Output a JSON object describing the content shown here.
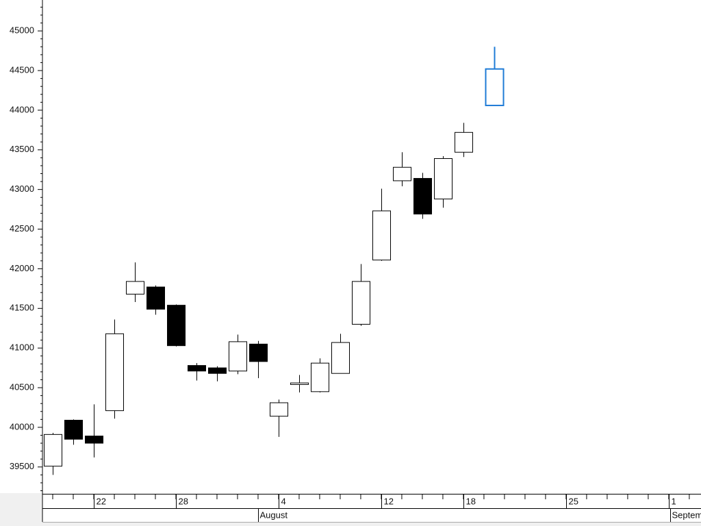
{
  "chart_data": {
    "type": "candlestick",
    "x": [
      0,
      1,
      2,
      3,
      4,
      5,
      6,
      7,
      8,
      9,
      10,
      11,
      12,
      13,
      14,
      15,
      16,
      17,
      18,
      19,
      20,
      21.5
    ],
    "open": [
      39510,
      40090,
      39890,
      40210,
      41680,
      41770,
      41540,
      40780,
      40750,
      40710,
      41050,
      40140,
      40540,
      40450,
      40680,
      41300,
      42110,
      43110,
      43140,
      42880,
      43470,
      44060
    ],
    "high": [
      39930,
      40100,
      40290,
      41360,
      42080,
      41790,
      41550,
      40810,
      40770,
      41170,
      41090,
      40350,
      40660,
      40870,
      41180,
      42060,
      43010,
      43470,
      43210,
      43420,
      43840,
      44800
    ],
    "low": [
      39400,
      39780,
      39620,
      40110,
      41580,
      41420,
      41020,
      40590,
      40580,
      40670,
      40620,
      39880,
      40440,
      40440,
      40680,
      41280,
      42100,
      43040,
      42630,
      42770,
      43410,
      44060
    ],
    "close": [
      39910,
      39850,
      39800,
      41180,
      41840,
      41490,
      41030,
      40710,
      40680,
      41080,
      40830,
      40310,
      40560,
      40810,
      41070,
      41840,
      42730,
      43280,
      42690,
      43390,
      43720,
      44520
    ],
    "up_color": "#ffffff",
    "down_color": "#000000",
    "edge_color": "#000000",
    "last_color": "#1e7bd6",
    "ylim": [
      39170,
      45390
    ],
    "yticks": [
      39500,
      40000,
      40500,
      41000,
      41500,
      42000,
      42500,
      43000,
      43500,
      44000,
      44500,
      45000
    ],
    "xlim": [
      -0.5,
      31.57
    ],
    "xticks": [
      {
        "value": 2,
        "label": "22"
      },
      {
        "value": 6,
        "label": "28"
      },
      {
        "value": 11,
        "label": "4"
      },
      {
        "value": 16,
        "label": "12"
      },
      {
        "value": 20,
        "label": "18"
      },
      {
        "value": 25,
        "label": "25"
      },
      {
        "value": 30,
        "label": "1"
      }
    ],
    "months": [
      {
        "value": 10,
        "label": "August"
      },
      {
        "value": 30.07,
        "label": "September"
      }
    ]
  }
}
